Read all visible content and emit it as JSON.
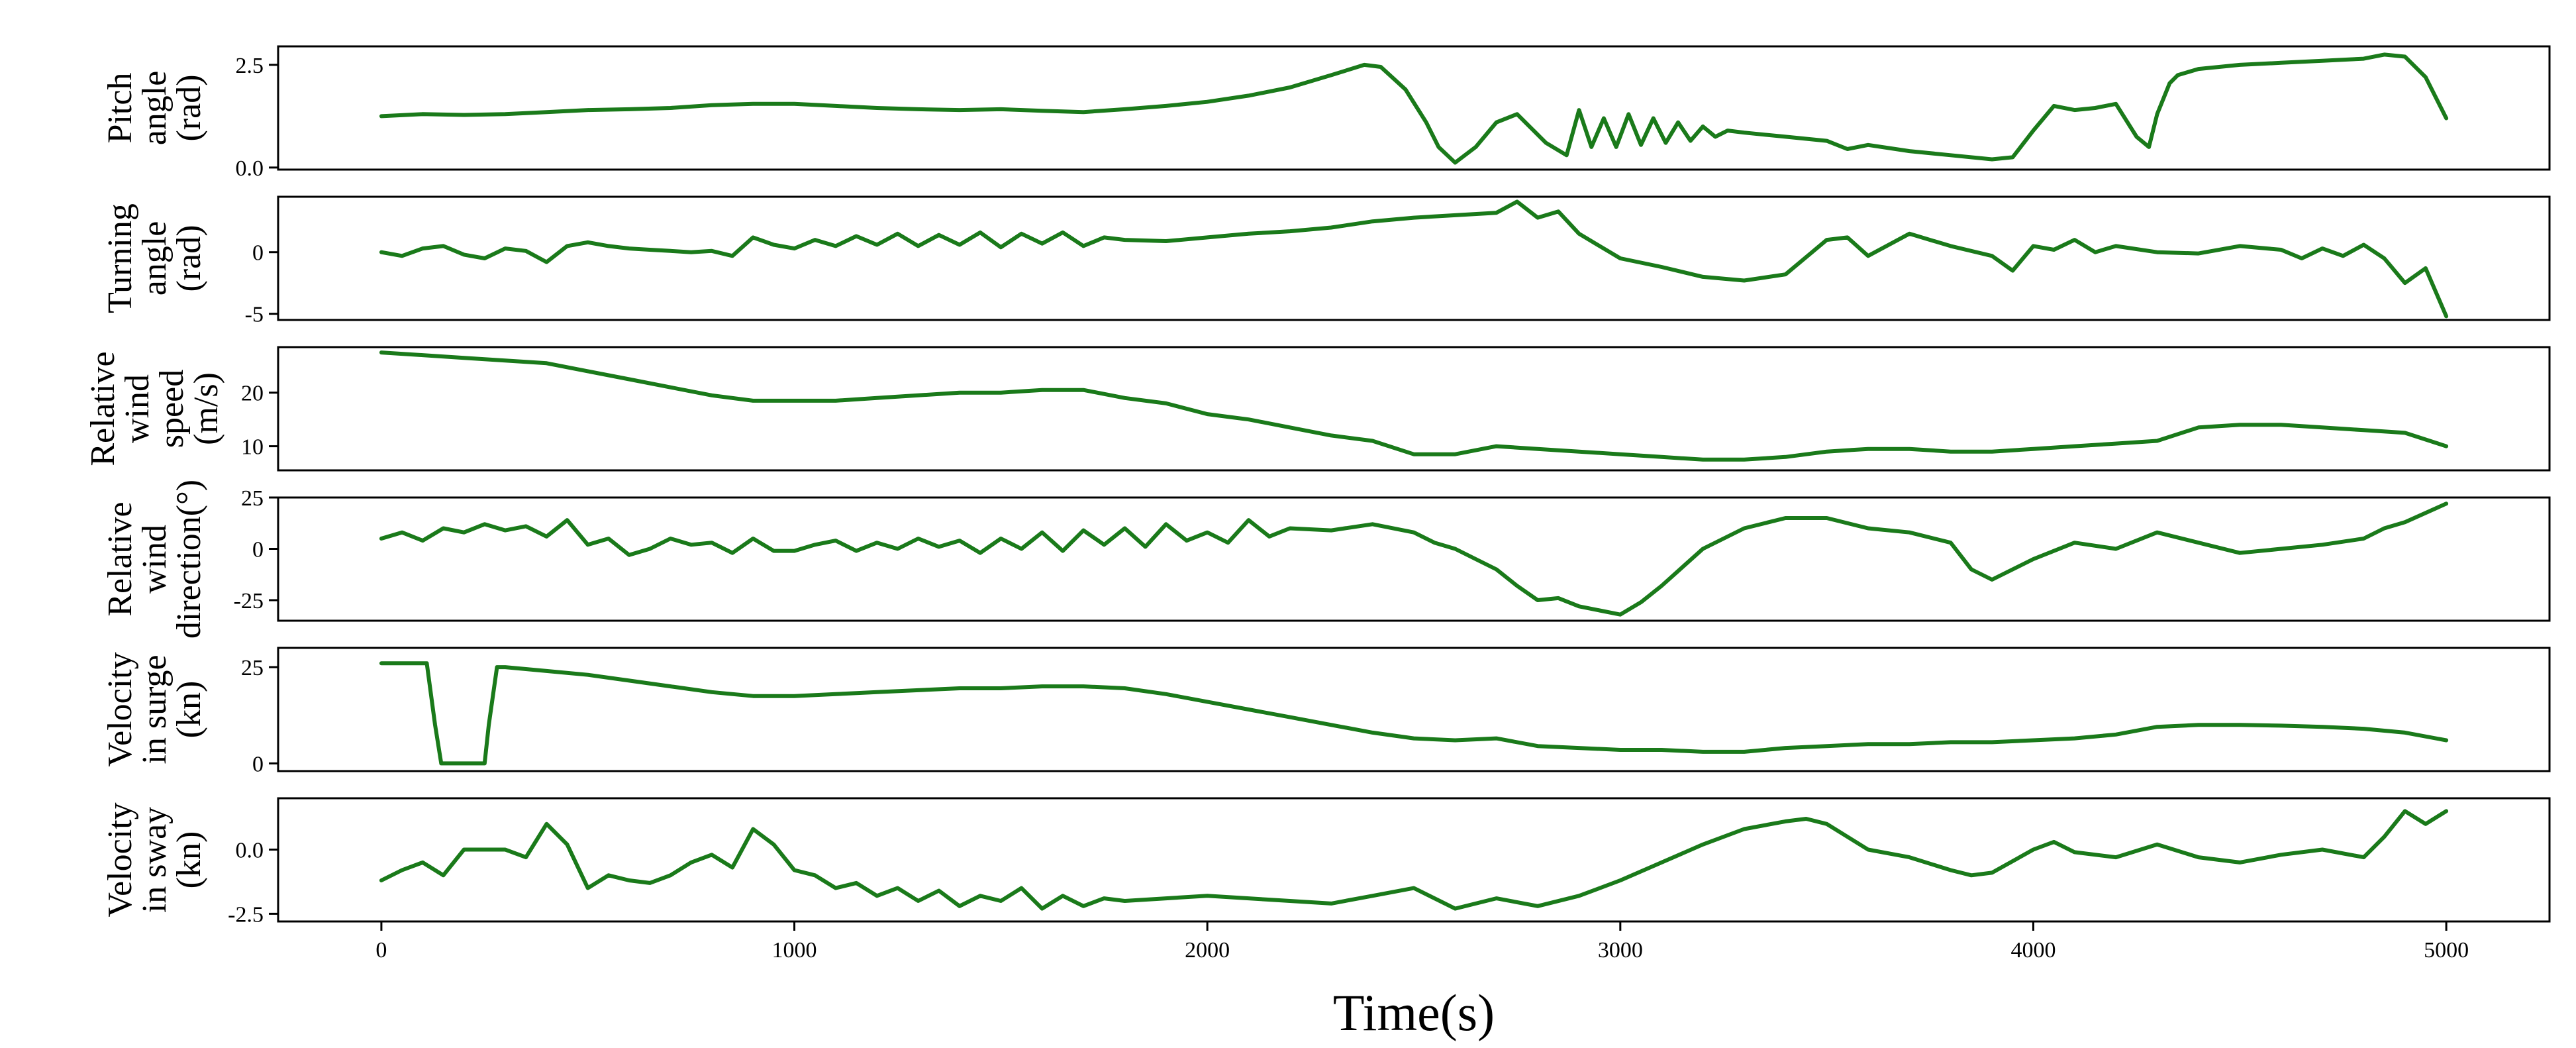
{
  "chart_data": {
    "type": "line",
    "xlabel": "Time(s)",
    "xlim": [
      -250,
      5250
    ],
    "xticks": [
      0,
      1000,
      2000,
      3000,
      4000,
      5000
    ],
    "xtick_labels": [
      "0",
      "1000",
      "2000",
      "3000",
      "4000",
      "5000"
    ],
    "series_color": "#1a7a1a",
    "grid": false,
    "legend": "none",
    "panels": [
      {
        "ylabel_lines": [
          "Pitch",
          "angle",
          "(rad)"
        ],
        "ylim": [
          -0.05,
          2.95
        ],
        "yticks": [
          0.0,
          2.5
        ],
        "ytick_labels": [
          "0.0",
          "2.5"
        ],
        "x": [
          0,
          100,
          200,
          300,
          400,
          500,
          600,
          700,
          800,
          900,
          1000,
          1100,
          1200,
          1300,
          1400,
          1500,
          1600,
          1700,
          1800,
          1900,
          2000,
          2100,
          2200,
          2300,
          2380,
          2420,
          2480,
          2530,
          2560,
          2600,
          2650,
          2700,
          2750,
          2820,
          2870,
          2900,
          2930,
          2960,
          2990,
          3020,
          3050,
          3080,
          3110,
          3140,
          3170,
          3200,
          3230,
          3260,
          3300,
          3400,
          3500,
          3550,
          3600,
          3700,
          3800,
          3900,
          3950,
          4000,
          4050,
          4100,
          4150,
          4200,
          4250,
          4280,
          4300,
          4330,
          4350,
          4400,
          4500,
          4600,
          4700,
          4800,
          4850,
          4900,
          4950,
          5000
        ],
        "y": [
          1.25,
          1.3,
          1.28,
          1.3,
          1.35,
          1.4,
          1.42,
          1.45,
          1.52,
          1.55,
          1.55,
          1.5,
          1.45,
          1.42,
          1.4,
          1.42,
          1.38,
          1.35,
          1.42,
          1.5,
          1.6,
          1.75,
          1.95,
          2.25,
          2.5,
          2.45,
          1.9,
          1.1,
          0.5,
          0.12,
          0.5,
          1.1,
          1.3,
          0.6,
          0.3,
          1.4,
          0.5,
          1.2,
          0.5,
          1.3,
          0.55,
          1.2,
          0.6,
          1.1,
          0.65,
          1.0,
          0.75,
          0.9,
          0.85,
          0.75,
          0.65,
          0.45,
          0.55,
          0.4,
          0.3,
          0.2,
          0.25,
          0.9,
          1.5,
          1.4,
          1.45,
          1.55,
          0.75,
          0.5,
          1.3,
          2.05,
          2.25,
          2.4,
          2.5,
          2.55,
          2.6,
          2.65,
          2.75,
          2.7,
          2.2,
          1.2
        ]
      },
      {
        "ylabel_lines": [
          "Turning",
          "angle",
          "(rad)"
        ],
        "ylim": [
          -5.5,
          4.5
        ],
        "yticks": [
          -5,
          0
        ],
        "ytick_labels": [
          "-5",
          "0"
        ],
        "x": [
          0,
          50,
          100,
          150,
          200,
          250,
          300,
          350,
          400,
          450,
          500,
          550,
          600,
          650,
          700,
          750,
          800,
          850,
          900,
          950,
          1000,
          1050,
          1100,
          1150,
          1200,
          1250,
          1300,
          1350,
          1400,
          1450,
          1500,
          1550,
          1600,
          1650,
          1700,
          1750,
          1800,
          1900,
          2000,
          2100,
          2200,
          2300,
          2400,
          2500,
          2600,
          2700,
          2750,
          2800,
          2850,
          2900,
          2950,
          3000,
          3100,
          3200,
          3300,
          3400,
          3500,
          3550,
          3600,
          3700,
          3750,
          3800,
          3900,
          3950,
          4000,
          4050,
          4100,
          4150,
          4200,
          4300,
          4400,
          4500,
          4600,
          4650,
          4700,
          4750,
          4800,
          4850,
          4900,
          4950,
          5000
        ],
        "y": [
          0,
          -0.3,
          0.3,
          0.5,
          -0.2,
          -0.5,
          0.3,
          0.1,
          -0.8,
          0.5,
          0.8,
          0.5,
          0.3,
          0.2,
          0.1,
          0.0,
          0.1,
          -0.3,
          1.2,
          0.6,
          0.3,
          1.0,
          0.5,
          1.3,
          0.6,
          1.5,
          0.5,
          1.4,
          0.6,
          1.6,
          0.4,
          1.5,
          0.7,
          1.6,
          0.5,
          1.2,
          1.0,
          0.9,
          1.2,
          1.5,
          1.7,
          2.0,
          2.5,
          2.8,
          3.0,
          3.2,
          4.1,
          2.8,
          3.3,
          1.5,
          0.5,
          -0.5,
          -1.2,
          -2.0,
          -2.3,
          -1.8,
          1.0,
          1.2,
          -0.3,
          1.5,
          1.0,
          0.5,
          -0.3,
          -1.5,
          0.5,
          0.2,
          1.0,
          0.0,
          0.5,
          0.0,
          -0.1,
          0.5,
          0.2,
          -0.5,
          0.3,
          -0.3,
          0.6,
          -0.5,
          -2.5,
          -1.3,
          -5.2
        ]
      },
      {
        "ylabel_lines": [
          "Relative",
          "wind",
          "speed",
          "(m/s)"
        ],
        "ylim": [
          5.5,
          28.5
        ],
        "yticks": [
          10,
          20
        ],
        "ytick_labels": [
          "10",
          "20"
        ],
        "x": [
          0,
          100,
          200,
          300,
          400,
          500,
          600,
          700,
          800,
          900,
          1000,
          1100,
          1200,
          1300,
          1400,
          1500,
          1600,
          1700,
          1800,
          1900,
          2000,
          2100,
          2200,
          2300,
          2400,
          2500,
          2600,
          2700,
          2800,
          2900,
          3000,
          3100,
          3200,
          3300,
          3400,
          3500,
          3600,
          3700,
          3800,
          3900,
          4000,
          4100,
          4200,
          4300,
          4400,
          4500,
          4600,
          4700,
          4800,
          4900,
          5000
        ],
        "y": [
          27.5,
          27,
          26.5,
          26,
          25.5,
          24,
          22.5,
          21,
          19.5,
          18.5,
          18.5,
          18.5,
          19,
          19.5,
          20,
          20,
          20.5,
          20.5,
          19,
          18,
          16,
          15,
          13.5,
          12,
          11,
          8.5,
          8.5,
          10,
          9.5,
          9,
          8.5,
          8,
          7.5,
          7.5,
          8,
          9,
          9.5,
          9.5,
          9,
          9,
          9.5,
          10,
          10.5,
          11,
          13.5,
          14,
          14,
          13.5,
          13,
          12.5,
          10
        ]
      },
      {
        "ylabel_lines": [
          "Relative",
          "wind",
          "direction(°)"
        ],
        "ylim": [
          -35,
          25
        ],
        "yticks": [
          -25,
          0,
          25
        ],
        "ytick_labels": [
          "-25",
          "0",
          "25"
        ],
        "x": [
          0,
          50,
          100,
          150,
          200,
          250,
          300,
          350,
          400,
          450,
          500,
          550,
          600,
          650,
          700,
          750,
          800,
          850,
          900,
          950,
          1000,
          1050,
          1100,
          1150,
          1200,
          1250,
          1300,
          1350,
          1400,
          1450,
          1500,
          1550,
          1600,
          1650,
          1700,
          1750,
          1800,
          1850,
          1900,
          1950,
          2000,
          2050,
          2100,
          2150,
          2200,
          2300,
          2400,
          2500,
          2550,
          2600,
          2650,
          2700,
          2750,
          2800,
          2850,
          2900,
          2950,
          3000,
          3050,
          3100,
          3200,
          3300,
          3400,
          3500,
          3600,
          3700,
          3800,
          3850,
          3900,
          4000,
          4100,
          4200,
          4300,
          4400,
          4500,
          4600,
          4700,
          4800,
          4850,
          4900,
          5000
        ],
        "y": [
          5,
          8,
          4,
          10,
          8,
          12,
          9,
          11,
          6,
          14,
          2,
          5,
          -3,
          0,
          5,
          2,
          3,
          -2,
          5,
          -1,
          -1,
          2,
          4,
          -1,
          3,
          0,
          5,
          1,
          4,
          -2,
          5,
          0,
          8,
          -1,
          9,
          2,
          10,
          1,
          12,
          4,
          8,
          3,
          14,
          6,
          10,
          9,
          12,
          8,
          3,
          0,
          -5,
          -10,
          -18,
          -25,
          -24,
          -28,
          -30,
          -32,
          -26,
          -18,
          0,
          10,
          15,
          15,
          10,
          8,
          3,
          -10,
          -15,
          -5,
          3,
          0,
          8,
          3,
          -2,
          0,
          2,
          5,
          10,
          13,
          22
        ]
      },
      {
        "ylabel_lines": [
          "Velocity",
          "in surge",
          "(kn)"
        ],
        "ylim": [
          -2,
          30
        ],
        "yticks": [
          0,
          25
        ],
        "ytick_labels": [
          "0",
          "25"
        ],
        "x": [
          0,
          100,
          110,
          130,
          145,
          250,
          260,
          280,
          300,
          400,
          500,
          600,
          700,
          800,
          900,
          1000,
          1100,
          1200,
          1300,
          1400,
          1500,
          1600,
          1700,
          1800,
          1900,
          2000,
          2100,
          2200,
          2300,
          2400,
          2500,
          2600,
          2700,
          2800,
          2900,
          3000,
          3100,
          3200,
          3300,
          3400,
          3500,
          3600,
          3700,
          3800,
          3900,
          4000,
          4100,
          4200,
          4300,
          4400,
          4500,
          4600,
          4700,
          4800,
          4900,
          5000
        ],
        "y": [
          26,
          26,
          26,
          10,
          0,
          0,
          10,
          25,
          25,
          24,
          23,
          21.5,
          20,
          18.5,
          17.5,
          17.5,
          18,
          18.5,
          19,
          19.5,
          19.5,
          20,
          20,
          19.5,
          18,
          16,
          14,
          12,
          10,
          8,
          6.5,
          6,
          6.5,
          4.5,
          4,
          3.5,
          3.5,
          3,
          3,
          4,
          4.5,
          5,
          5,
          5.5,
          5.5,
          6,
          6.5,
          7.5,
          9.5,
          10,
          10,
          9.8,
          9.5,
          9,
          8,
          6
        ]
      },
      {
        "ylabel_lines": [
          "Velocity",
          "in sway",
          "(kn)"
        ],
        "ylim": [
          -2.8,
          2.0
        ],
        "yticks": [
          -2.5,
          0.0
        ],
        "ytick_labels": [
          "-2.5",
          "0.0"
        ],
        "x": [
          0,
          50,
          100,
          150,
          200,
          250,
          300,
          350,
          400,
          450,
          500,
          550,
          600,
          650,
          700,
          750,
          800,
          850,
          900,
          950,
          1000,
          1050,
          1100,
          1150,
          1200,
          1250,
          1300,
          1350,
          1400,
          1450,
          1500,
          1550,
          1600,
          1650,
          1700,
          1750,
          1800,
          1900,
          2000,
          2100,
          2200,
          2300,
          2400,
          2500,
          2600,
          2700,
          2800,
          2900,
          3000,
          3100,
          3200,
          3300,
          3400,
          3450,
          3500,
          3600,
          3700,
          3800,
          3850,
          3900,
          4000,
          4050,
          4100,
          4200,
          4300,
          4400,
          4500,
          4600,
          4700,
          4800,
          4850,
          4900,
          4950,
          5000
        ],
        "y": [
          -1.2,
          -0.8,
          -0.5,
          -1.0,
          0.0,
          0.0,
          0.0,
          -0.3,
          1.0,
          0.2,
          -1.5,
          -1.0,
          -1.2,
          -1.3,
          -1.0,
          -0.5,
          -0.2,
          -0.7,
          0.8,
          0.2,
          -0.8,
          -1.0,
          -1.5,
          -1.3,
          -1.8,
          -1.5,
          -2.0,
          -1.6,
          -2.2,
          -1.8,
          -2.0,
          -1.5,
          -2.3,
          -1.8,
          -2.2,
          -1.9,
          -2.0,
          -1.9,
          -1.8,
          -1.9,
          -2.0,
          -2.1,
          -1.8,
          -1.5,
          -2.3,
          -1.9,
          -2.2,
          -1.8,
          -1.2,
          -0.5,
          0.2,
          0.8,
          1.1,
          1.2,
          1.0,
          0.0,
          -0.3,
          -0.8,
          -1.0,
          -0.9,
          0.0,
          0.3,
          -0.1,
          -0.3,
          0.2,
          -0.3,
          -0.5,
          -0.2,
          0.0,
          -0.3,
          0.5,
          1.5,
          1.0,
          1.5
        ]
      }
    ]
  }
}
